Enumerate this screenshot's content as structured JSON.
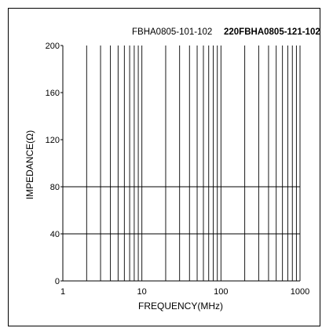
{
  "chart_data": {
    "type": "line",
    "title": "FBHA0805-101-102",
    "title_overlap_text": "220FBHA0805-121-102",
    "xlabel": "FREQUENCY(MHz)",
    "ylabel": "IMPEDANCE(Ω)",
    "x_scale": "log",
    "xlim": [
      1,
      1000
    ],
    "ylim": [
      0,
      200
    ],
    "x_ticks": [
      "1",
      "10",
      "100",
      "1000"
    ],
    "y_ticks": [
      "0",
      "40",
      "80",
      "120",
      "160",
      "200"
    ],
    "grid": {
      "vertical_log_minor": true,
      "horizontal_at": [
        40,
        80
      ]
    },
    "series": []
  },
  "colors": {
    "axis": "#000000",
    "grid": "#000000",
    "background": "#ffffff"
  }
}
